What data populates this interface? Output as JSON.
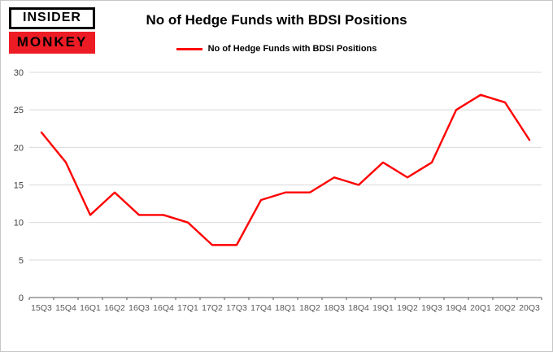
{
  "header": {
    "logo_line1": "INSIDER",
    "logo_line2": "MONKEY",
    "title": "No of Hedge Funds with BDSI Positions"
  },
  "brand": {
    "logo_red": "#ed1c24"
  },
  "legend": {
    "label": "No of Hedge Funds with BDSI Positions",
    "color": "#ff0000"
  },
  "chart_data": {
    "type": "line",
    "title": "No of Hedge Funds with BDSI Positions",
    "categories": [
      "15Q3",
      "15Q4",
      "16Q1",
      "16Q2",
      "16Q3",
      "16Q4",
      "17Q1",
      "17Q2",
      "17Q3",
      "17Q4",
      "18Q1",
      "18Q2",
      "18Q3",
      "18Q4",
      "19Q1",
      "19Q2",
      "19Q3",
      "19Q4",
      "20Q1",
      "20Q2",
      "20Q3"
    ],
    "series": [
      {
        "name": "No of Hedge Funds with BDSI Positions",
        "color": "#ff0000",
        "values": [
          22,
          18,
          11,
          14,
          11,
          11,
          10,
          7,
          7,
          13,
          14,
          14,
          16,
          15,
          18,
          16,
          18,
          25,
          27,
          26,
          21
        ]
      }
    ],
    "xlabel": "",
    "ylabel": "",
    "ylim": [
      0,
      30
    ],
    "yticks": [
      0,
      5,
      10,
      15,
      20,
      25,
      30
    ],
    "grid": true,
    "legend_position": "top",
    "colors": {
      "gridline": "#d9d9d9",
      "axis_line": "#595959",
      "y_tick_label": "#404040",
      "x_tick_label": "#595959"
    }
  }
}
